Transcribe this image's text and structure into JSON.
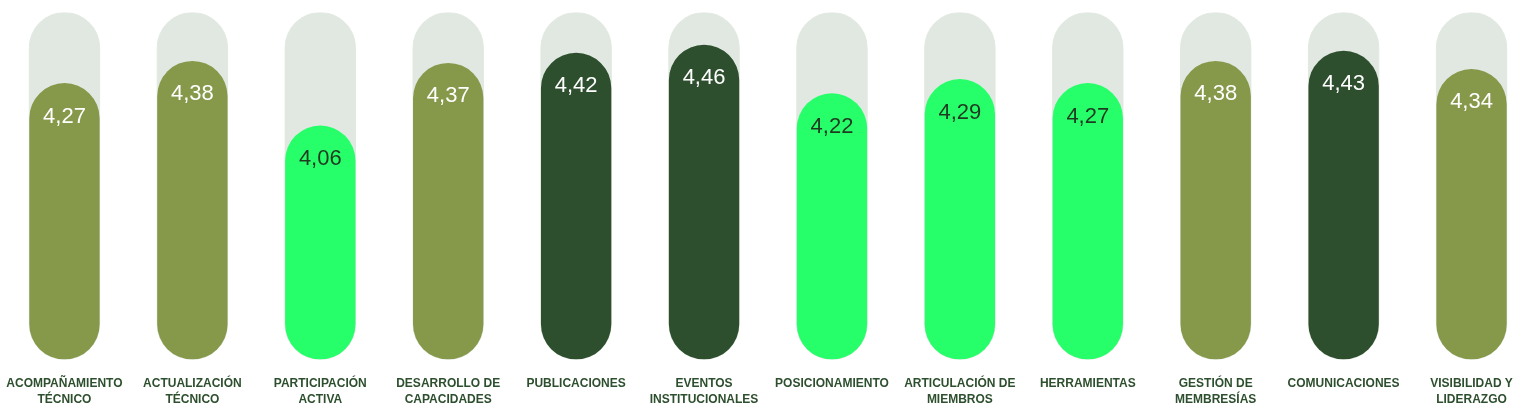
{
  "chart_data": {
    "type": "bar",
    "categories": [
      "ACOMPAÑAMIENTO\nTÉCNICO",
      "ACTUALIZACIÓN\nTÉCNICO",
      "PARTICIPACIÓN\nACTIVA",
      "DESARROLLO DE\nCAPACIDADES",
      "PUBLICACIONES",
      "EVENTOS\nINSTITUCIONALES",
      "POSICIONAMIENTO",
      "ARTICULACIÓN DE\nMIEMBROS",
      "HERRAMIENTAS",
      "GESTIÓN DE\nMEMBRESÍAS",
      "COMUNICACIONES",
      "VISIBILIDAD Y\nLIDERAZGO"
    ],
    "values": [
      4.27,
      4.38,
      4.06,
      4.37,
      4.42,
      4.46,
      4.22,
      4.29,
      4.27,
      4.38,
      4.43,
      4.34
    ],
    "colors": [
      "#86994a",
      "#86994a",
      "#27ff6a",
      "#86994a",
      "#2d4f2e",
      "#2d4f2e",
      "#27ff6a",
      "#27ff6a",
      "#27ff6a",
      "#86994a",
      "#2d4f2e",
      "#86994a"
    ],
    "value_labels": [
      "4,27",
      "4,38",
      "4,06",
      "4,37",
      "4,42",
      "4,46",
      "4,22",
      "4,29",
      "4,27",
      "4,38",
      "4,43",
      "4,34"
    ],
    "ylim": [
      2.9,
      4.62
    ],
    "tick_labels": "x",
    "grid": false
  }
}
